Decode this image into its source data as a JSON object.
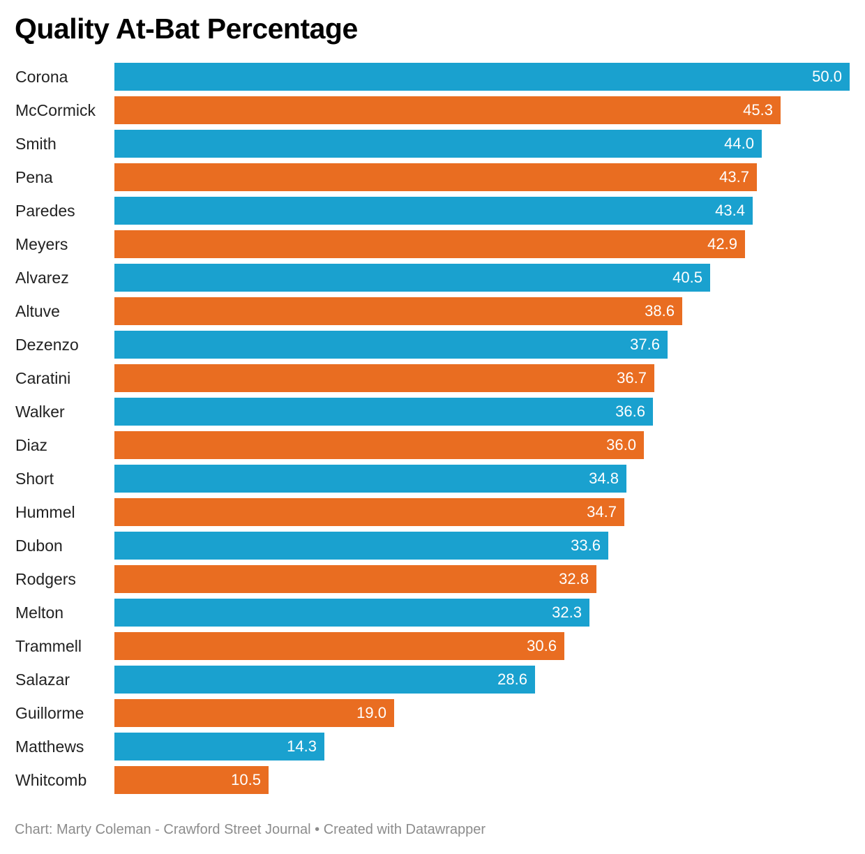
{
  "title": "Quality At-Bat Percentage",
  "footer": "Chart: Marty Coleman - Crawford Street Journal • Created with Datawrapper",
  "colors": {
    "blue": "#1aa1cf",
    "orange": "#e96d21"
  },
  "chart_data": {
    "type": "bar",
    "orientation": "horizontal",
    "title": "Quality At-Bat Percentage",
    "xlim": [
      0,
      50
    ],
    "categories": [
      "Corona",
      "McCormick",
      "Smith",
      "Pena",
      "Paredes",
      "Meyers",
      "Alvarez",
      "Altuve",
      "Dezenzo",
      "Caratini",
      "Walker",
      "Diaz",
      "Short",
      "Hummel",
      "Dubon",
      "Rodgers",
      "Melton",
      "Trammell",
      "Salazar",
      "Guillorme",
      "Matthews",
      "Whitcomb"
    ],
    "values": [
      50.0,
      45.3,
      44.0,
      43.7,
      43.4,
      42.9,
      40.5,
      38.6,
      37.6,
      36.7,
      36.6,
      36.0,
      34.8,
      34.7,
      33.6,
      32.8,
      32.3,
      30.6,
      28.6,
      19.0,
      14.3,
      10.5
    ],
    "value_labels": [
      "50.0",
      "45.3",
      "44.0",
      "43.7",
      "43.4",
      "42.9",
      "40.5",
      "38.6",
      "37.6",
      "36.7",
      "36.6",
      "36.0",
      "34.8",
      "34.7",
      "33.6",
      "32.8",
      "32.3",
      "30.6",
      "28.6",
      "19.0",
      "14.3",
      "10.5"
    ],
    "bar_colors": [
      "blue",
      "orange",
      "blue",
      "orange",
      "blue",
      "orange",
      "blue",
      "orange",
      "blue",
      "orange",
      "blue",
      "orange",
      "blue",
      "orange",
      "blue",
      "orange",
      "blue",
      "orange",
      "blue",
      "orange",
      "blue",
      "orange"
    ]
  }
}
